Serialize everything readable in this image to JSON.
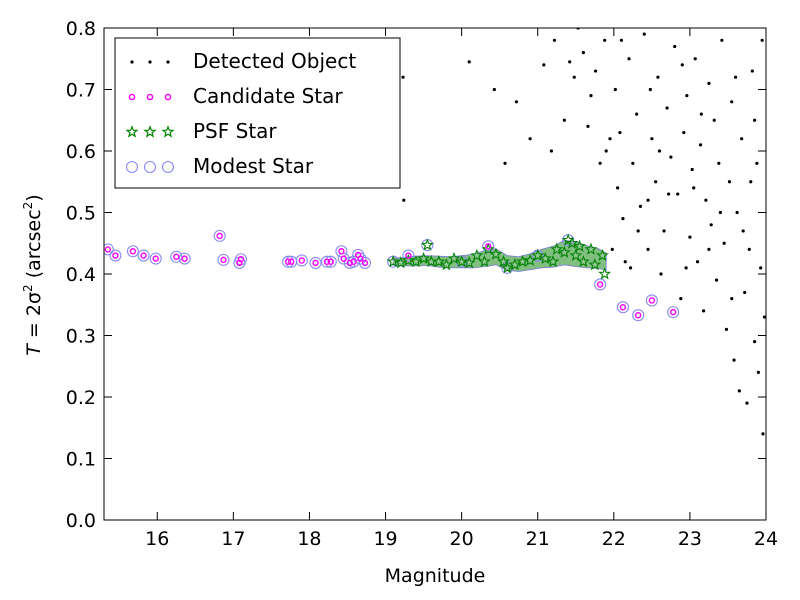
{
  "chart_data": {
    "type": "scatter",
    "xlabel": "Magnitude",
    "ylabel": "T = 2σ² (arcsec²)",
    "ylabel_parts": {
      "lhs": "T",
      "mid": " = 2σ",
      "sup1": "2",
      "open": " (arcsec",
      "sup2": "2",
      "close": ")"
    },
    "xlim": [
      15.3,
      24
    ],
    "ylim": [
      0.0,
      0.8
    ],
    "xticks": [
      "16",
      "17",
      "18",
      "19",
      "20",
      "21",
      "22",
      "23",
      "24"
    ],
    "yticks": [
      "0.0",
      "0.1",
      "0.2",
      "0.3",
      "0.4",
      "0.5",
      "0.6",
      "0.7",
      "0.8"
    ],
    "grid": false,
    "legend_position": "top-left",
    "series": [
      {
        "name": "Detected Object",
        "marker": "dot",
        "color": "#000000",
        "points": [
          [
            19.23,
            0.72
          ],
          [
            19.24,
            0.52
          ],
          [
            20.1,
            0.745
          ],
          [
            20.43,
            0.7
          ],
          [
            20.57,
            0.58
          ],
          [
            20.72,
            0.68
          ],
          [
            20.9,
            0.62
          ],
          [
            21.08,
            0.74
          ],
          [
            21.18,
            0.6
          ],
          [
            21.22,
            0.78
          ],
          [
            21.35,
            0.65
          ],
          [
            21.42,
            0.745
          ],
          [
            21.48,
            0.72
          ],
          [
            21.53,
            0.8
          ],
          [
            21.6,
            0.76
          ],
          [
            21.66,
            0.64
          ],
          [
            21.7,
            0.69
          ],
          [
            21.76,
            0.73
          ],
          [
            21.82,
            0.58
          ],
          [
            21.88,
            0.78
          ],
          [
            21.9,
            0.6
          ],
          [
            21.95,
            0.62
          ],
          [
            21.98,
            0.44
          ],
          [
            22.02,
            0.7
          ],
          [
            22.05,
            0.54
          ],
          [
            22.1,
            0.78
          ],
          [
            22.12,
            0.49
          ],
          [
            22.15,
            0.42
          ],
          [
            22.2,
            0.75
          ],
          [
            22.25,
            0.58
          ],
          [
            22.3,
            0.66
          ],
          [
            22.35,
            0.51
          ],
          [
            22.4,
            0.79
          ],
          [
            22.45,
            0.44
          ],
          [
            22.5,
            0.62
          ],
          [
            22.55,
            0.55
          ],
          [
            22.58,
            0.72
          ],
          [
            22.62,
            0.4
          ],
          [
            22.66,
            0.47
          ],
          [
            22.7,
            0.67
          ],
          [
            22.75,
            0.59
          ],
          [
            22.8,
            0.77
          ],
          [
            22.84,
            0.53
          ],
          [
            22.88,
            0.36
          ],
          [
            22.92,
            0.63
          ],
          [
            22.96,
            0.69
          ],
          [
            23.0,
            0.46
          ],
          [
            23.03,
            0.57
          ],
          [
            23.07,
            0.75
          ],
          [
            23.1,
            0.42
          ],
          [
            23.14,
            0.61
          ],
          [
            23.18,
            0.34
          ],
          [
            23.21,
            0.52
          ],
          [
            23.25,
            0.71
          ],
          [
            23.28,
            0.48
          ],
          [
            23.32,
            0.65
          ],
          [
            23.35,
            0.39
          ],
          [
            23.38,
            0.58
          ],
          [
            23.42,
            0.78
          ],
          [
            23.45,
            0.45
          ],
          [
            23.48,
            0.31
          ],
          [
            23.52,
            0.55
          ],
          [
            23.55,
            0.68
          ],
          [
            23.58,
            0.26
          ],
          [
            23.62,
            0.5
          ],
          [
            23.65,
            0.21
          ],
          [
            23.68,
            0.62
          ],
          [
            23.72,
            0.37
          ],
          [
            23.75,
            0.19
          ],
          [
            23.78,
            0.44
          ],
          [
            23.82,
            0.73
          ],
          [
            23.85,
            0.29
          ],
          [
            23.88,
            0.58
          ],
          [
            23.9,
            0.24
          ],
          [
            23.93,
            0.41
          ],
          [
            23.96,
            0.14
          ],
          [
            23.98,
            0.33
          ],
          [
            22.08,
            0.63
          ],
          [
            22.32,
            0.47
          ],
          [
            22.48,
            0.7
          ],
          [
            22.72,
            0.53
          ],
          [
            22.95,
            0.41
          ],
          [
            23.15,
            0.66
          ],
          [
            23.4,
            0.5
          ],
          [
            23.6,
            0.72
          ],
          [
            23.8,
            0.55
          ],
          [
            23.95,
            0.78
          ],
          [
            22.22,
            0.41
          ],
          [
            22.6,
            0.6
          ],
          [
            22.9,
            0.74
          ],
          [
            23.25,
            0.44
          ],
          [
            23.55,
            0.36
          ],
          [
            23.7,
            0.47
          ],
          [
            23.85,
            0.65
          ],
          [
            22.45,
            0.52
          ],
          [
            23.05,
            0.54
          ]
        ]
      },
      {
        "name": "Candidate Star",
        "marker": "circle-small",
        "color": "#ff00ff",
        "points": [
          [
            15.35,
            0.44
          ],
          [
            15.45,
            0.43
          ],
          [
            15.68,
            0.437
          ],
          [
            15.82,
            0.43
          ],
          [
            15.98,
            0.425
          ],
          [
            16.25,
            0.428
          ],
          [
            16.36,
            0.425
          ],
          [
            16.82,
            0.462
          ],
          [
            16.87,
            0.423
          ],
          [
            17.08,
            0.418
          ],
          [
            17.1,
            0.424
          ],
          [
            17.72,
            0.42
          ],
          [
            17.76,
            0.42
          ],
          [
            17.9,
            0.422
          ],
          [
            18.08,
            0.418
          ],
          [
            18.23,
            0.42
          ],
          [
            18.28,
            0.42
          ],
          [
            18.42,
            0.437
          ],
          [
            18.45,
            0.425
          ],
          [
            18.53,
            0.418
          ],
          [
            18.58,
            0.42
          ],
          [
            18.64,
            0.431
          ],
          [
            18.67,
            0.425
          ],
          [
            18.73,
            0.418
          ],
          [
            19.3,
            0.43
          ],
          [
            20.35,
            0.445
          ],
          [
            21.82,
            0.383
          ],
          [
            22.12,
            0.346
          ],
          [
            22.32,
            0.333
          ],
          [
            22.5,
            0.357
          ],
          [
            22.78,
            0.338
          ]
        ]
      },
      {
        "name": "PSF Star",
        "marker": "star",
        "color": "#008000",
        "points": [
          [
            19.1,
            0.42
          ],
          [
            19.2,
            0.418
          ],
          [
            19.3,
            0.422
          ],
          [
            19.4,
            0.42
          ],
          [
            19.5,
            0.425
          ],
          [
            19.55,
            0.447
          ],
          [
            19.6,
            0.42
          ],
          [
            19.7,
            0.42
          ],
          [
            19.8,
            0.415
          ],
          [
            19.9,
            0.425
          ],
          [
            20.0,
            0.42
          ],
          [
            20.1,
            0.418
          ],
          [
            20.2,
            0.43
          ],
          [
            20.3,
            0.42
          ],
          [
            20.35,
            0.44
          ],
          [
            20.45,
            0.432
          ],
          [
            20.55,
            0.42
          ],
          [
            20.6,
            0.41
          ],
          [
            20.7,
            0.415
          ],
          [
            20.8,
            0.42
          ],
          [
            20.9,
            0.422
          ],
          [
            21.0,
            0.43
          ],
          [
            21.1,
            0.425
          ],
          [
            21.2,
            0.42
          ],
          [
            21.25,
            0.44
          ],
          [
            21.35,
            0.435
          ],
          [
            21.4,
            0.455
          ],
          [
            21.45,
            0.45
          ],
          [
            21.5,
            0.43
          ],
          [
            21.55,
            0.445
          ],
          [
            21.6,
            0.42
          ],
          [
            21.7,
            0.44
          ],
          [
            21.75,
            0.415
          ],
          [
            21.85,
            0.43
          ],
          [
            21.88,
            0.4
          ]
        ]
      },
      {
        "name": "Modest Star",
        "marker": "circle-large",
        "color": "#8a8af0",
        "points": [
          [
            15.35,
            0.44
          ],
          [
            15.45,
            0.43
          ],
          [
            15.68,
            0.437
          ],
          [
            15.82,
            0.43
          ],
          [
            15.98,
            0.425
          ],
          [
            16.25,
            0.428
          ],
          [
            16.36,
            0.425
          ],
          [
            16.82,
            0.462
          ],
          [
            16.87,
            0.423
          ],
          [
            17.08,
            0.418
          ],
          [
            17.1,
            0.424
          ],
          [
            17.72,
            0.42
          ],
          [
            17.76,
            0.42
          ],
          [
            17.9,
            0.422
          ],
          [
            18.08,
            0.418
          ],
          [
            18.23,
            0.42
          ],
          [
            18.28,
            0.42
          ],
          [
            18.42,
            0.437
          ],
          [
            18.45,
            0.425
          ],
          [
            18.53,
            0.418
          ],
          [
            18.58,
            0.42
          ],
          [
            18.64,
            0.431
          ],
          [
            18.67,
            0.425
          ],
          [
            18.73,
            0.418
          ],
          [
            19.1,
            0.42
          ],
          [
            19.3,
            0.43
          ],
          [
            19.55,
            0.447
          ],
          [
            20.0,
            0.42
          ],
          [
            20.35,
            0.445
          ],
          [
            20.6,
            0.41
          ],
          [
            21.0,
            0.43
          ],
          [
            21.4,
            0.455
          ],
          [
            21.82,
            0.383
          ],
          [
            22.12,
            0.346
          ],
          [
            22.32,
            0.333
          ],
          [
            22.5,
            0.357
          ],
          [
            22.78,
            0.338
          ]
        ]
      }
    ],
    "band": {
      "x": [
        19.1,
        19.25,
        19.4,
        19.55,
        19.7,
        19.85,
        20.0,
        20.15,
        20.3,
        20.45,
        20.6,
        20.75,
        20.9,
        21.05,
        21.2,
        21.35,
        21.5,
        21.65,
        21.8,
        21.9
      ],
      "center": [
        0.42,
        0.42,
        0.421,
        0.422,
        0.42,
        0.419,
        0.42,
        0.421,
        0.425,
        0.428,
        0.418,
        0.416,
        0.42,
        0.425,
        0.428,
        0.435,
        0.432,
        0.428,
        0.425,
        0.42
      ],
      "halfwidth": [
        0.006,
        0.007,
        0.008,
        0.008,
        0.009,
        0.009,
        0.01,
        0.011,
        0.013,
        0.013,
        0.012,
        0.012,
        0.013,
        0.015,
        0.017,
        0.02,
        0.02,
        0.018,
        0.016,
        0.014
      ]
    }
  }
}
